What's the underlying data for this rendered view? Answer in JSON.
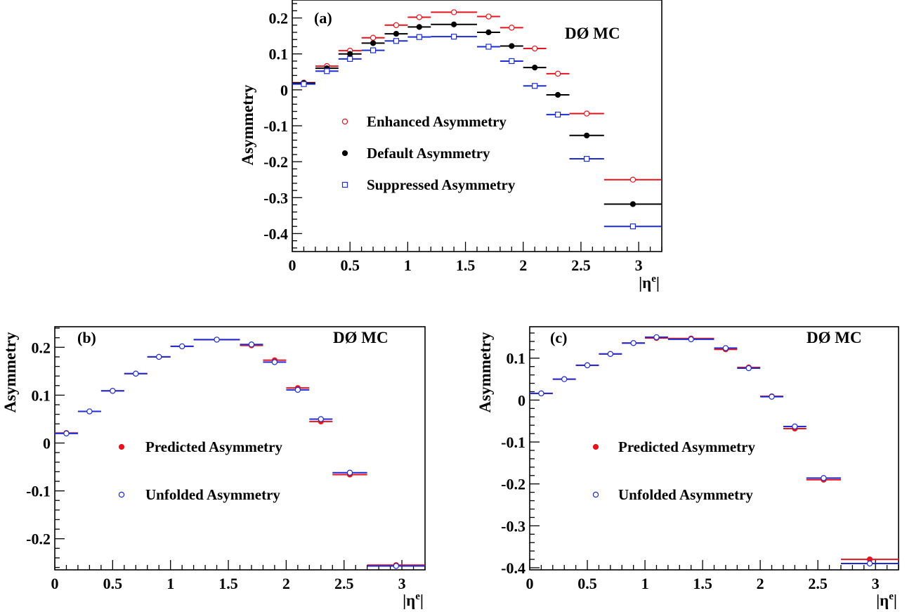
{
  "chart_data": [
    {
      "id": "a",
      "type": "scatter",
      "panel_label": "(a)",
      "tag": "DØ MC",
      "xlabel": "|η",
      "xlabel_sup": "e",
      "xlabel_close": "|",
      "ylabel": "Asymmetry",
      "xlim": [
        0,
        3.2
      ],
      "ylim": [
        -0.45,
        0.25
      ],
      "xticks": [
        0,
        0.5,
        1,
        1.5,
        2,
        2.5,
        3
      ],
      "xtick_labels": [
        "0",
        "0.5",
        "1",
        "1.5",
        "2",
        "2.5",
        "3"
      ],
      "yticks": [
        -0.4,
        -0.3,
        -0.2,
        -0.1,
        0,
        0.1,
        0.2
      ],
      "ytick_labels": [
        "-0.4",
        "-0.3",
        "-0.2",
        "-0.1",
        "0",
        "0.1",
        "0.2"
      ],
      "bins": [
        [
          0,
          0.2
        ],
        [
          0.2,
          0.4
        ],
        [
          0.4,
          0.6
        ],
        [
          0.6,
          0.8
        ],
        [
          0.8,
          1.0
        ],
        [
          1.0,
          1.2
        ],
        [
          1.2,
          1.6
        ],
        [
          1.6,
          1.8
        ],
        [
          1.8,
          2.0
        ],
        [
          2.0,
          2.2
        ],
        [
          2.2,
          2.4
        ],
        [
          2.4,
          2.7
        ],
        [
          2.7,
          3.2
        ]
      ],
      "x": [
        0.1,
        0.3,
        0.5,
        0.7,
        0.9,
        1.1,
        1.4,
        1.7,
        1.9,
        2.1,
        2.3,
        2.55,
        2.95
      ],
      "series": [
        {
          "name": "Enhanced Asymmetry",
          "color": "#e8141d",
          "marker": "open-circle",
          "values": [
            0.02,
            0.066,
            0.109,
            0.145,
            0.18,
            0.202,
            0.216,
            0.204,
            0.173,
            0.115,
            0.045,
            -0.066,
            -0.25
          ]
        },
        {
          "name": "Default Asymmetry",
          "color": "#000000",
          "marker": "filled-circle",
          "values": [
            0.019,
            0.06,
            0.1,
            0.13,
            0.156,
            0.175,
            0.182,
            0.16,
            0.122,
            0.062,
            -0.014,
            -0.127,
            -0.318
          ]
        },
        {
          "name": "Suppressed Asymmetry",
          "color": "#1c2dd6",
          "marker": "open-square",
          "values": [
            0.016,
            0.052,
            0.086,
            0.11,
            0.136,
            0.147,
            0.148,
            0.12,
            0.08,
            0.011,
            -0.069,
            -0.192,
            -0.38
          ]
        }
      ]
    },
    {
      "id": "b",
      "type": "scatter",
      "panel_label": "(b)",
      "tag": "DØ MC",
      "xlabel": "|η",
      "xlabel_sup": "e",
      "xlabel_close": "|",
      "ylabel": "Asymmetry",
      "xlim": [
        0,
        3.2
      ],
      "ylim": [
        -0.265,
        0.243
      ],
      "xticks": [
        0,
        0.5,
        1,
        1.5,
        2,
        2.5,
        3
      ],
      "xtick_labels": [
        "0",
        "0.5",
        "1",
        "1.5",
        "2",
        "2.5",
        "3"
      ],
      "yticks": [
        -0.2,
        -0.1,
        0,
        0.1,
        0.2
      ],
      "ytick_labels": [
        "-0.2",
        "-0.1",
        "0",
        "0.1",
        "0.2"
      ],
      "bins": [
        [
          0,
          0.2
        ],
        [
          0.2,
          0.4
        ],
        [
          0.4,
          0.6
        ],
        [
          0.6,
          0.8
        ],
        [
          0.8,
          1.0
        ],
        [
          1.0,
          1.2
        ],
        [
          1.2,
          1.6
        ],
        [
          1.6,
          1.8
        ],
        [
          1.8,
          2.0
        ],
        [
          2.0,
          2.2
        ],
        [
          2.2,
          2.4
        ],
        [
          2.4,
          2.7
        ],
        [
          2.7,
          3.2
        ]
      ],
      "x": [
        0.1,
        0.3,
        0.5,
        0.7,
        0.9,
        1.1,
        1.4,
        1.7,
        1.9,
        2.1,
        2.3,
        2.55,
        2.95
      ],
      "series": [
        {
          "name": "Predicted Asymmetry",
          "color": "#e8141d",
          "marker": "filled-circle",
          "values": [
            0.021,
            0.066,
            0.109,
            0.145,
            0.18,
            0.202,
            0.216,
            0.204,
            0.173,
            0.115,
            0.045,
            -0.066,
            -0.255
          ]
        },
        {
          "name": "Unfolded Asymmetry",
          "color": "#1c2dd6",
          "marker": "open-circle",
          "values": [
            0.02,
            0.066,
            0.109,
            0.145,
            0.18,
            0.202,
            0.216,
            0.206,
            0.169,
            0.111,
            0.05,
            -0.062,
            -0.257
          ]
        }
      ]
    },
    {
      "id": "c",
      "type": "scatter",
      "panel_label": "(c)",
      "tag": "DØ MC",
      "xlabel": "|η",
      "xlabel_sup": "e",
      "xlabel_close": "|",
      "ylabel": "Asymmetry",
      "xlim": [
        0,
        3.2
      ],
      "ylim": [
        -0.405,
        0.175
      ],
      "xticks": [
        0,
        0.5,
        1,
        1.5,
        2,
        2.5,
        3
      ],
      "xtick_labels": [
        "0",
        "0.5",
        "1",
        "1.5",
        "2",
        "2.5",
        "3"
      ],
      "yticks": [
        -0.4,
        -0.3,
        -0.2,
        -0.1,
        0,
        0.1
      ],
      "ytick_labels": [
        "-0.4",
        "-0.3",
        "-0.2",
        "-0.1",
        "0",
        "0.1"
      ],
      "bins": [
        [
          0,
          0.2
        ],
        [
          0.2,
          0.4
        ],
        [
          0.4,
          0.6
        ],
        [
          0.6,
          0.8
        ],
        [
          0.8,
          1.0
        ],
        [
          1.0,
          1.2
        ],
        [
          1.2,
          1.6
        ],
        [
          1.6,
          1.8
        ],
        [
          1.8,
          2.0
        ],
        [
          2.0,
          2.2
        ],
        [
          2.2,
          2.4
        ],
        [
          2.4,
          2.7
        ],
        [
          2.7,
          3.2
        ]
      ],
      "x": [
        0.1,
        0.3,
        0.5,
        0.7,
        0.9,
        1.1,
        1.4,
        1.7,
        1.9,
        2.1,
        2.3,
        2.55,
        2.95
      ],
      "series": [
        {
          "name": "Predicted Asymmetry",
          "color": "#e8141d",
          "marker": "filled-circle",
          "values": [
            0.016,
            0.05,
            0.083,
            0.11,
            0.136,
            0.148,
            0.147,
            0.121,
            0.078,
            0.009,
            -0.068,
            -0.19,
            -0.38
          ]
        },
        {
          "name": "Unfolded Asymmetry",
          "color": "#1c2dd6",
          "marker": "open-circle",
          "values": [
            0.016,
            0.05,
            0.083,
            0.11,
            0.136,
            0.15,
            0.145,
            0.124,
            0.076,
            0.008,
            -0.063,
            -0.186,
            -0.39
          ]
        }
      ]
    }
  ]
}
